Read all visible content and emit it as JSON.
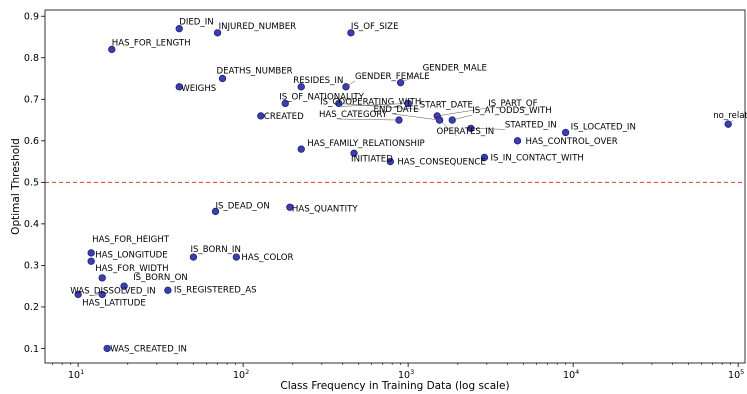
{
  "chart_data": {
    "type": "scatter",
    "xlabel": "Class Frequency in Training Data (log scale)",
    "ylabel": "Optimal Threshold",
    "xscale": "log",
    "xlim": [
      6.3,
      110000
    ],
    "ylim": [
      0.065,
      0.915
    ],
    "x_ticks": [
      10,
      100,
      1000,
      10000,
      100000
    ],
    "x_tick_labels": [
      {
        "base": "10",
        "exp": "1"
      },
      {
        "base": "10",
        "exp": "2"
      },
      {
        "base": "10",
        "exp": "3"
      },
      {
        "base": "10",
        "exp": "4"
      },
      {
        "base": "10",
        "exp": "5"
      }
    ],
    "y_ticks": [
      0.1,
      0.2,
      0.3,
      0.4,
      0.5,
      0.6,
      0.7,
      0.8,
      0.9
    ],
    "y_tick_labels": [
      "0.1",
      "0.2",
      "0.3",
      "0.4",
      "0.5",
      "0.6",
      "0.7",
      "0.8",
      "0.9"
    ],
    "reference_line": {
      "y": 0.5,
      "color": "#e8372e",
      "style": "dashed"
    },
    "point_color": "#3b3bbf",
    "point_edge_color": "#1e1e5e",
    "points": [
      {
        "label": "DIED_IN",
        "x": 41,
        "y": 0.87
      },
      {
        "label": "INJURED_NUMBER",
        "x": 70,
        "y": 0.86
      },
      {
        "label": "IS_OF_SIZE",
        "x": 450,
        "y": 0.86
      },
      {
        "label": "HAS_FOR_LENGTH",
        "x": 16,
        "y": 0.82
      },
      {
        "label": "DEATHS_NUMBER",
        "x": 75,
        "y": 0.75
      },
      {
        "label": "WEIGHS",
        "x": 41,
        "y": 0.73
      },
      {
        "label": "RESIDES_IN",
        "x": 225,
        "y": 0.73
      },
      {
        "label": "GENDER_FEMALE",
        "x": 420,
        "y": 0.73
      },
      {
        "label": "GENDER_MALE",
        "x": 900,
        "y": 0.74
      },
      {
        "label": "IS_COOPERATING_WITH",
        "x": 1000,
        "y": 0.69
      },
      {
        "label": "IS_OF_NATIONALITY",
        "x": 180,
        "y": 0.69
      },
      {
        "label": "START_DATE",
        "x": 380,
        "y": 0.69
      },
      {
        "label": "IS_PART_OF",
        "x": 1500,
        "y": 0.66
      },
      {
        "label": "HAS_CATEGORY",
        "x": 880,
        "y": 0.65
      },
      {
        "label": "END_DATE",
        "x": 1550,
        "y": 0.65
      },
      {
        "label": "IS_AT_ODDS_WITH",
        "x": 1850,
        "y": 0.65
      },
      {
        "label": "CREATED",
        "x": 128,
        "y": 0.66
      },
      {
        "label": "STARTED_IN",
        "x": 2400,
        "y": 0.63
      },
      {
        "label": "OPERATES_IN",
        "x": 1550,
        "y": 0.65
      },
      {
        "label": "no_relation",
        "x": 87000,
        "y": 0.64
      },
      {
        "label": "IS_LOCATED_IN",
        "x": 9000,
        "y": 0.62
      },
      {
        "label": "HAS_CONTROL_OVER",
        "x": 4600,
        "y": 0.6
      },
      {
        "label": "HAS_FAMILY_RELATIONSHIP",
        "x": 225,
        "y": 0.58
      },
      {
        "label": "INITIATED",
        "x": 470,
        "y": 0.57
      },
      {
        "label": "HAS_CONSEQUENCE",
        "x": 780,
        "y": 0.55
      },
      {
        "label": "IS_IN_CONTACT_WITH",
        "x": 2900,
        "y": 0.56
      },
      {
        "label": "IS_DEAD_ON",
        "x": 68,
        "y": 0.43
      },
      {
        "label": "HAS_QUANTITY",
        "x": 192,
        "y": 0.44
      },
      {
        "label": "HAS_FOR_HEIGHT",
        "x": 12,
        "y": 0.33
      },
      {
        "label": "HAS_LONGITUDE",
        "x": 12,
        "y": 0.31
      },
      {
        "label": "IS_BORN_IN",
        "x": 50,
        "y": 0.32
      },
      {
        "label": "HAS_COLOR",
        "x": 91,
        "y": 0.32
      },
      {
        "label": "HAS_FOR_WIDTH",
        "x": 14,
        "y": 0.27
      },
      {
        "label": "IS_BORN_ON",
        "x": 19,
        "y": 0.25
      },
      {
        "label": "WAS_DISSOLVED_IN",
        "x": 14,
        "y": 0.23
      },
      {
        "label": "IS_REGISTERED_AS",
        "x": 35,
        "y": 0.24
      },
      {
        "label": "HAS_LATITUDE",
        "x": 10,
        "y": 0.23
      },
      {
        "label": "WAS_CREATED_IN",
        "x": 15,
        "y": 0.1
      }
    ]
  }
}
